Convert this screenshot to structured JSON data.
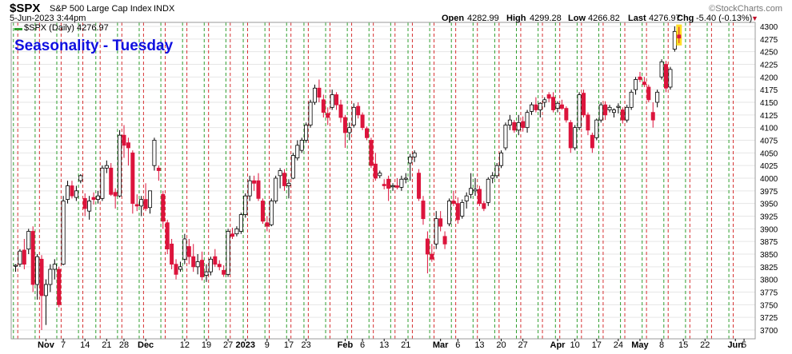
{
  "header": {
    "symbol": "$SPX",
    "description": "S&P 500 Large Cap Index",
    "exchange": "INDX",
    "date": "5-Jun-2023 3:44pm",
    "watermark": "©StockCharts.com",
    "quote": [
      {
        "label": "Open",
        "value": "4282.99"
      },
      {
        "label": "High",
        "value": "4299.28"
      },
      {
        "label": "Low",
        "value": "4266.82"
      },
      {
        "label": "Last",
        "value": "4276.97"
      },
      {
        "label": "Chg",
        "value": "-5.40 (-0.13%)"
      }
    ],
    "down_arrow": "▼"
  },
  "legend": {
    "text": "$SPX (Daily) 4276.97"
  },
  "overlay_title": "Seasonality - Tuesday",
  "colors": {
    "up_candle": "#ffffff",
    "down_candle": "#dc143c",
    "candle_outline": "#000000",
    "green_line": "#2e9e2e",
    "red_line": "#d63031",
    "grid": "#e6e6e6",
    "title": "#1010e0",
    "highlight": "#ffd700"
  },
  "chart_data": {
    "type": "candlestick",
    "title": "Seasonality - Tuesday",
    "ylim": [
      3690,
      4310
    ],
    "y_ticks": [
      3700,
      3725,
      3750,
      3775,
      3800,
      3825,
      3850,
      3875,
      3900,
      3925,
      3950,
      3975,
      4000,
      4025,
      4050,
      4075,
      4100,
      4125,
      4150,
      4175,
      4200,
      4225,
      4250,
      4275,
      4300
    ],
    "x_ticks": [
      {
        "label": "Nov",
        "i": 7,
        "bold": true
      },
      {
        "label": "7",
        "i": 11
      },
      {
        "label": "14",
        "i": 16
      },
      {
        "label": "21",
        "i": 21
      },
      {
        "label": "28",
        "i": 25
      },
      {
        "label": "Dec",
        "i": 30,
        "bold": true
      },
      {
        "label": "12",
        "i": 39
      },
      {
        "label": "19",
        "i": 44
      },
      {
        "label": "27",
        "i": 49
      },
      {
        "label": "2023",
        "i": 53,
        "bold": true
      },
      {
        "label": "9",
        "i": 58
      },
      {
        "label": "17",
        "i": 63
      },
      {
        "label": "23",
        "i": 67
      },
      {
        "label": "Feb",
        "i": 76,
        "bold": true
      },
      {
        "label": "6",
        "i": 80
      },
      {
        "label": "13",
        "i": 85
      },
      {
        "label": "21",
        "i": 90
      },
      {
        "label": "Mar",
        "i": 98,
        "bold": true
      },
      {
        "label": "6",
        "i": 102
      },
      {
        "label": "13",
        "i": 107
      },
      {
        "label": "20",
        "i": 112
      },
      {
        "label": "27",
        "i": 117
      },
      {
        "label": "Apr",
        "i": 125,
        "bold": true
      },
      {
        "label": "10",
        "i": 129
      },
      {
        "label": "17",
        "i": 134
      },
      {
        "label": "24",
        "i": 139
      },
      {
        "label": "May",
        "i": 144,
        "bold": true
      },
      {
        "label": "8",
        "i": 149
      },
      {
        "label": "15",
        "i": 154
      },
      {
        "label": "22",
        "i": 159
      },
      {
        "label": "Jun",
        "i": 166,
        "bold": true
      },
      {
        "label": "5",
        "i": 168
      }
    ],
    "green_lines": [
      0,
      5,
      10,
      15,
      19,
      24,
      29,
      34,
      39,
      44,
      49,
      53,
      58,
      63,
      67,
      72,
      77,
      82,
      87,
      91,
      96,
      101,
      106,
      111,
      116,
      121,
      125,
      130,
      135,
      140,
      145,
      150,
      155,
      160,
      165
    ],
    "red_lines": [
      1,
      6,
      11,
      16,
      20,
      25,
      30,
      35,
      40,
      45,
      50,
      54,
      59,
      64,
      68,
      73,
      78,
      83,
      88,
      92,
      97,
      102,
      107,
      112,
      117,
      122,
      126,
      131,
      136,
      141,
      146,
      151,
      156,
      161,
      166
    ],
    "candles": [
      {
        "o": 3826,
        "h": 3830,
        "l": 3815,
        "c": 3828
      },
      {
        "o": 3830,
        "h": 3860,
        "l": 3825,
        "c": 3856
      },
      {
        "o": 3858,
        "h": 3880,
        "l": 3820,
        "c": 3830
      },
      {
        "o": 3860,
        "h": 3900,
        "l": 3850,
        "c": 3895
      },
      {
        "o": 3895,
        "h": 3905,
        "l": 3775,
        "c": 3790
      },
      {
        "o": 3790,
        "h": 3850,
        "l": 3760,
        "c": 3845
      },
      {
        "o": 3840,
        "h": 3848,
        "l": 3700,
        "c": 3768
      },
      {
        "o": 3768,
        "h": 3800,
        "l": 3710,
        "c": 3790
      },
      {
        "o": 3790,
        "h": 3830,
        "l": 3775,
        "c": 3820
      },
      {
        "o": 3820,
        "h": 3840,
        "l": 3800,
        "c": 3830
      },
      {
        "o": 3820,
        "h": 3825,
        "l": 3745,
        "c": 3750
      },
      {
        "o": 3830,
        "h": 3965,
        "l": 3828,
        "c": 3955
      },
      {
        "o": 3958,
        "h": 3995,
        "l": 3950,
        "c": 3985
      },
      {
        "o": 3985,
        "h": 3995,
        "l": 3960,
        "c": 3965
      },
      {
        "o": 3962,
        "h": 3985,
        "l": 3955,
        "c": 3975
      },
      {
        "o": 3995,
        "h": 4008,
        "l": 3990,
        "c": 4005
      },
      {
        "o": 3960,
        "h": 3970,
        "l": 3925,
        "c": 3940
      },
      {
        "o": 3935,
        "h": 3965,
        "l": 3918,
        "c": 3955
      },
      {
        "o": 3962,
        "h": 3972,
        "l": 3948,
        "c": 3958
      },
      {
        "o": 3958,
        "h": 3975,
        "l": 3950,
        "c": 3965
      },
      {
        "o": 3960,
        "h": 4025,
        "l": 3955,
        "c": 4020
      },
      {
        "o": 4020,
        "h": 4035,
        "l": 4010,
        "c": 4025
      },
      {
        "o": 4020,
        "h": 4030,
        "l": 3965,
        "c": 3968
      },
      {
        "o": 3972,
        "h": 3980,
        "l": 3940,
        "c": 3965
      },
      {
        "o": 3965,
        "h": 4095,
        "l": 3962,
        "c": 4085
      },
      {
        "o": 4085,
        "h": 4105,
        "l": 4040,
        "c": 4065
      },
      {
        "o": 4070,
        "h": 4080,
        "l": 4025,
        "c": 4060
      },
      {
        "o": 4050,
        "h": 4055,
        "l": 3930,
        "c": 3950
      },
      {
        "o": 3948,
        "h": 3968,
        "l": 3935,
        "c": 3945
      },
      {
        "o": 3945,
        "h": 3965,
        "l": 3925,
        "c": 3958
      },
      {
        "o": 3958,
        "h": 3990,
        "l": 3935,
        "c": 3940
      },
      {
        "o": 3942,
        "h": 3975,
        "l": 3930,
        "c": 3975
      },
      {
        "o": 4025,
        "h": 4080,
        "l": 4015,
        "c": 4075
      },
      {
        "o": 4020,
        "h": 4025,
        "l": 3995,
        "c": 4015
      },
      {
        "o": 3968,
        "h": 3975,
        "l": 3900,
        "c": 3915
      },
      {
        "o": 3912,
        "h": 3918,
        "l": 3850,
        "c": 3860
      },
      {
        "o": 3870,
        "h": 3880,
        "l": 3820,
        "c": 3830
      },
      {
        "o": 3830,
        "h": 3840,
        "l": 3800,
        "c": 3810
      },
      {
        "o": 3820,
        "h": 3835,
        "l": 3815,
        "c": 3825
      },
      {
        "o": 3840,
        "h": 3890,
        "l": 3830,
        "c": 3880
      },
      {
        "o": 3865,
        "h": 3880,
        "l": 3830,
        "c": 3845
      },
      {
        "o": 3845,
        "h": 3870,
        "l": 3815,
        "c": 3825
      },
      {
        "o": 3825,
        "h": 3850,
        "l": 3810,
        "c": 3835
      },
      {
        "o": 3838,
        "h": 3855,
        "l": 3798,
        "c": 3805
      },
      {
        "o": 3808,
        "h": 3830,
        "l": 3795,
        "c": 3815
      },
      {
        "o": 3815,
        "h": 3845,
        "l": 3808,
        "c": 3840
      },
      {
        "o": 3845,
        "h": 3860,
        "l": 3825,
        "c": 3830
      },
      {
        "o": 3830,
        "h": 3838,
        "l": 3818,
        "c": 3825
      },
      {
        "o": 3818,
        "h": 3828,
        "l": 3805,
        "c": 3810
      },
      {
        "o": 3810,
        "h": 3900,
        "l": 3805,
        "c": 3895
      },
      {
        "o": 3890,
        "h": 3902,
        "l": 3880,
        "c": 3885
      },
      {
        "o": 3890,
        "h": 3905,
        "l": 3885,
        "c": 3900
      },
      {
        "o": 3895,
        "h": 3932,
        "l": 3890,
        "c": 3928
      },
      {
        "o": 3928,
        "h": 3970,
        "l": 3922,
        "c": 3965
      },
      {
        "o": 3965,
        "h": 4005,
        "l": 3955,
        "c": 3995
      },
      {
        "o": 3995,
        "h": 4005,
        "l": 3975,
        "c": 3990
      },
      {
        "o": 3995,
        "h": 4010,
        "l": 3955,
        "c": 3960
      },
      {
        "o": 3955,
        "h": 3960,
        "l": 3910,
        "c": 3915
      },
      {
        "o": 3912,
        "h": 3925,
        "l": 3895,
        "c": 3905
      },
      {
        "o": 3908,
        "h": 3960,
        "l": 3905,
        "c": 3955
      },
      {
        "o": 3955,
        "h": 4005,
        "l": 3950,
        "c": 4000
      },
      {
        "o": 4005,
        "h": 4020,
        "l": 3980,
        "c": 4015
      },
      {
        "o": 4010,
        "h": 4018,
        "l": 3975,
        "c": 3985
      },
      {
        "o": 3985,
        "h": 3998,
        "l": 3960,
        "c": 3990
      },
      {
        "o": 4000,
        "h": 4050,
        "l": 3998,
        "c": 4045
      },
      {
        "o": 4040,
        "h": 4075,
        "l": 4035,
        "c": 4065
      },
      {
        "o": 4055,
        "h": 4080,
        "l": 4050,
        "c": 4075
      },
      {
        "o": 4075,
        "h": 4110,
        "l": 4070,
        "c": 4105
      },
      {
        "o": 4105,
        "h": 4155,
        "l": 4100,
        "c": 4150
      },
      {
        "o": 4150,
        "h": 4185,
        "l": 4145,
        "c": 4178
      },
      {
        "o": 4178,
        "h": 4195,
        "l": 4150,
        "c": 4160
      },
      {
        "o": 4155,
        "h": 4165,
        "l": 4120,
        "c": 4130
      },
      {
        "o": 4128,
        "h": 4140,
        "l": 4105,
        "c": 4120
      },
      {
        "o": 4140,
        "h": 4175,
        "l": 4135,
        "c": 4165
      },
      {
        "o": 4165,
        "h": 4170,
        "l": 4135,
        "c": 4145
      },
      {
        "o": 4145,
        "h": 4155,
        "l": 4110,
        "c": 4120
      },
      {
        "o": 4120,
        "h": 4125,
        "l": 4060,
        "c": 4090
      },
      {
        "o": 4090,
        "h": 4110,
        "l": 4075,
        "c": 4100
      },
      {
        "o": 4105,
        "h": 4148,
        "l": 4100,
        "c": 4140
      },
      {
        "o": 4142,
        "h": 4150,
        "l": 4118,
        "c": 4125
      },
      {
        "o": 4125,
        "h": 4130,
        "l": 4095,
        "c": 4100
      },
      {
        "o": 4098,
        "h": 4102,
        "l": 4075,
        "c": 4080
      },
      {
        "o": 4075,
        "h": 4080,
        "l": 4020,
        "c": 4025
      },
      {
        "o": 4028,
        "h": 4050,
        "l": 3995,
        "c": 4000
      },
      {
        "o": 4005,
        "h": 4015,
        "l": 4000,
        "c": 4010
      },
      {
        "o": 3988,
        "h": 3998,
        "l": 3978,
        "c": 3985
      },
      {
        "o": 3998,
        "h": 4005,
        "l": 3955,
        "c": 3980
      },
      {
        "o": 3983,
        "h": 3990,
        "l": 3975,
        "c": 3985
      },
      {
        "o": 3985,
        "h": 4000,
        "l": 3978,
        "c": 3982
      },
      {
        "o": 3982,
        "h": 4005,
        "l": 3975,
        "c": 3998
      },
      {
        "o": 3998,
        "h": 4010,
        "l": 3990,
        "c": 4000
      },
      {
        "o": 4030,
        "h": 4048,
        "l": 3995,
        "c": 4042
      },
      {
        "o": 4042,
        "h": 4055,
        "l": 4032,
        "c": 4050
      },
      {
        "o": 4010,
        "h": 4018,
        "l": 3955,
        "c": 3960
      },
      {
        "o": 3955,
        "h": 3965,
        "l": 3908,
        "c": 3920
      },
      {
        "o": 3880,
        "h": 3895,
        "l": 3812,
        "c": 3850
      },
      {
        "o": 3850,
        "h": 3870,
        "l": 3835,
        "c": 3840
      },
      {
        "o": 3870,
        "h": 3935,
        "l": 3860,
        "c": 3920
      },
      {
        "o": 3920,
        "h": 3935,
        "l": 3895,
        "c": 3905
      },
      {
        "o": 3885,
        "h": 3895,
        "l": 3860,
        "c": 3870
      },
      {
        "o": 3910,
        "h": 3960,
        "l": 3905,
        "c": 3955
      },
      {
        "o": 3955,
        "h": 3975,
        "l": 3945,
        "c": 3950
      },
      {
        "o": 3950,
        "h": 3962,
        "l": 3910,
        "c": 3918
      },
      {
        "o": 3925,
        "h": 3958,
        "l": 3920,
        "c": 3952
      },
      {
        "o": 3955,
        "h": 3972,
        "l": 3940,
        "c": 3965
      },
      {
        "o": 3968,
        "h": 4010,
        "l": 3960,
        "c": 3980
      },
      {
        "o": 3975,
        "h": 4000,
        "l": 3965,
        "c": 3978
      },
      {
        "o": 3978,
        "h": 3985,
        "l": 3945,
        "c": 3950
      },
      {
        "o": 3950,
        "h": 3955,
        "l": 3935,
        "c": 3940
      },
      {
        "o": 3952,
        "h": 4002,
        "l": 3945,
        "c": 3998
      },
      {
        "o": 4000,
        "h": 4012,
        "l": 3990,
        "c": 4005
      },
      {
        "o": 4005,
        "h": 4030,
        "l": 4000,
        "c": 4025
      },
      {
        "o": 4025,
        "h": 4055,
        "l": 4020,
        "c": 4050
      },
      {
        "o": 4060,
        "h": 4110,
        "l": 4055,
        "c": 4105
      },
      {
        "o": 4105,
        "h": 4125,
        "l": 4095,
        "c": 4115
      },
      {
        "o": 4110,
        "h": 4115,
        "l": 4090,
        "c": 4095
      },
      {
        "o": 4095,
        "h": 4125,
        "l": 4085,
        "c": 4110
      },
      {
        "o": 4112,
        "h": 4122,
        "l": 4092,
        "c": 4100
      },
      {
        "o": 4100,
        "h": 4135,
        "l": 4090,
        "c": 4130
      },
      {
        "o": 4132,
        "h": 4150,
        "l": 4125,
        "c": 4145
      },
      {
        "o": 4145,
        "h": 4160,
        "l": 4130,
        "c": 4135
      },
      {
        "o": 4135,
        "h": 4150,
        "l": 4120,
        "c": 4148
      },
      {
        "o": 4150,
        "h": 4160,
        "l": 4140,
        "c": 4155
      },
      {
        "o": 4165,
        "h": 4170,
        "l": 4150,
        "c": 4158
      },
      {
        "o": 4160,
        "h": 4170,
        "l": 4130,
        "c": 4135
      },
      {
        "o": 4138,
        "h": 4152,
        "l": 4130,
        "c": 4148
      },
      {
        "o": 4145,
        "h": 4155,
        "l": 4135,
        "c": 4138
      },
      {
        "o": 4138,
        "h": 4142,
        "l": 4110,
        "c": 4115
      },
      {
        "o": 4110,
        "h": 4115,
        "l": 4050,
        "c": 4060
      },
      {
        "o": 4060,
        "h": 4105,
        "l": 4055,
        "c": 4100
      },
      {
        "o": 4100,
        "h": 4170,
        "l": 4095,
        "c": 4165
      },
      {
        "o": 4168,
        "h": 4175,
        "l": 4120,
        "c": 4125
      },
      {
        "o": 4125,
        "h": 4130,
        "l": 4085,
        "c": 4095
      },
      {
        "o": 4085,
        "h": 4090,
        "l": 4050,
        "c": 4060
      },
      {
        "o": 4080,
        "h": 4118,
        "l": 4075,
        "c": 4115
      },
      {
        "o": 4115,
        "h": 4150,
        "l": 4110,
        "c": 4145
      },
      {
        "o": 4145,
        "h": 4152,
        "l": 4115,
        "c": 4125
      },
      {
        "o": 4135,
        "h": 4145,
        "l": 4130,
        "c": 4140
      },
      {
        "o": 4130,
        "h": 4138,
        "l": 4120,
        "c": 4135
      },
      {
        "o": 4140,
        "h": 4148,
        "l": 4128,
        "c": 4142
      },
      {
        "o": 4135,
        "h": 4140,
        "l": 4108,
        "c": 4115
      },
      {
        "o": 4115,
        "h": 4145,
        "l": 4110,
        "c": 4140
      },
      {
        "o": 4140,
        "h": 4175,
        "l": 4135,
        "c": 4170
      },
      {
        "o": 4175,
        "h": 4200,
        "l": 4165,
        "c": 4195
      },
      {
        "o": 4200,
        "h": 4210,
        "l": 4190,
        "c": 4195
      },
      {
        "o": 4190,
        "h": 4200,
        "l": 4180,
        "c": 4185
      },
      {
        "o": 4180,
        "h": 4185,
        "l": 4150,
        "c": 4155
      },
      {
        "o": 4130,
        "h": 4150,
        "l": 4100,
        "c": 4115
      },
      {
        "o": 4150,
        "h": 4175,
        "l": 4140,
        "c": 4170
      },
      {
        "o": 4200,
        "h": 4235,
        "l": 4195,
        "c": 4230
      },
      {
        "o": 4225,
        "h": 4232,
        "l": 4170,
        "c": 4178
      },
      {
        "o": 4180,
        "h": 4220,
        "l": 4175,
        "c": 4215
      },
      {
        "o": 4255,
        "h": 4300,
        "l": 4250,
        "c": 4290
      },
      {
        "o": 4283,
        "h": 4299,
        "l": 4267,
        "c": 4277
      }
    ]
  }
}
